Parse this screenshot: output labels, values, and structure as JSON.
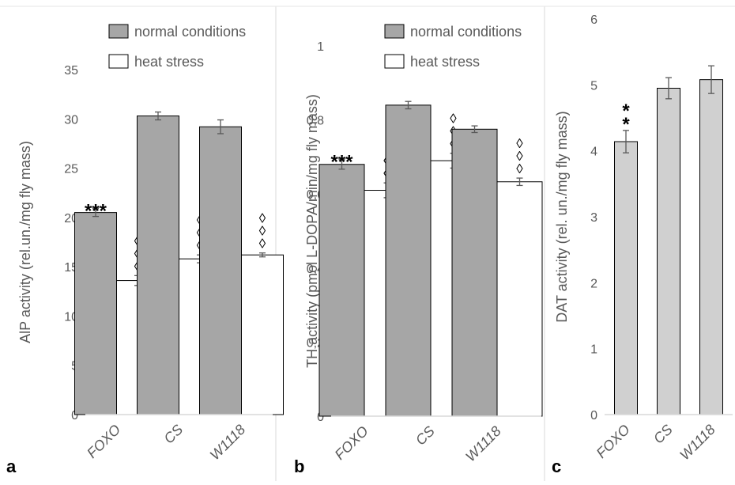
{
  "chart_data": [
    {
      "type": "bar",
      "panel_label": "a",
      "categories": [
        "FOXO",
        "CS",
        "W1118"
      ],
      "ylabel": "AlP activity (rel.un./mg fly mass)",
      "ylim": [
        0,
        35
      ],
      "yticks": [
        0,
        5,
        10,
        15,
        20,
        25,
        30,
        35
      ],
      "ytick_labels": [
        "0",
        "5",
        "10",
        "15",
        "20",
        "25",
        "30",
        "35"
      ],
      "legend_position": "top-right",
      "series": [
        {
          "name": "normal conditions",
          "color": "#a6a6a6",
          "values": [
            20.5,
            30.3,
            29.2
          ],
          "errors": [
            0.4,
            0.4,
            0.7
          ],
          "markers": [
            "***",
            "",
            ""
          ]
        },
        {
          "name": "heat stress",
          "color": "#ffffff",
          "values": [
            13.6,
            15.8,
            16.2
          ],
          "errors": [
            0.5,
            0.4,
            0.2
          ],
          "markers": [
            "◊◊◊",
            "◊◊◊",
            "◊◊◊"
          ]
        }
      ]
    },
    {
      "type": "bar",
      "panel_label": "b",
      "categories": [
        "FOXO",
        "CS",
        "W1118"
      ],
      "ylabel": "TH activity (pmol L-DOPA/min/mg fly mass)",
      "ylim": [
        0,
        1
      ],
      "yticks": [
        0,
        0.2,
        0.4,
        0.6,
        0.8,
        1
      ],
      "ytick_labels": [
        "0",
        "0,2",
        "0,4",
        "0,6",
        "0,8",
        "1"
      ],
      "legend_position": "top-right",
      "series": [
        {
          "name": "normal conditions",
          "color": "#a6a6a6",
          "values": [
            0.68,
            0.84,
            0.775
          ],
          "errors": [
            0.013,
            0.01,
            0.009
          ],
          "markers": [
            "***",
            "",
            ""
          ]
        },
        {
          "name": "heat stress",
          "color": "#ffffff",
          "values": [
            0.61,
            0.69,
            0.633
          ],
          "errors": [
            0.02,
            0.02,
            0.01
          ],
          "markers": [
            "◊◊",
            "◊◊◊",
            "◊◊◊"
          ]
        }
      ]
    },
    {
      "type": "bar",
      "panel_label": "c",
      "categories": [
        "FOXO",
        "CS",
        "W1118"
      ],
      "ylabel": "DAT activity (rel. un./mg fly mass)",
      "ylim": [
        0,
        6
      ],
      "yticks": [
        0,
        1,
        2,
        3,
        4,
        5,
        6
      ],
      "ytick_labels": [
        "0",
        "1",
        "2",
        "3",
        "4",
        "5",
        "6"
      ],
      "series": [
        {
          "name": "",
          "color": "#d0d0d0",
          "values": [
            4.14,
            4.95,
            5.08
          ],
          "errors": [
            0.17,
            0.16,
            0.21
          ],
          "markers": [
            "**",
            "",
            ""
          ]
        }
      ]
    }
  ]
}
